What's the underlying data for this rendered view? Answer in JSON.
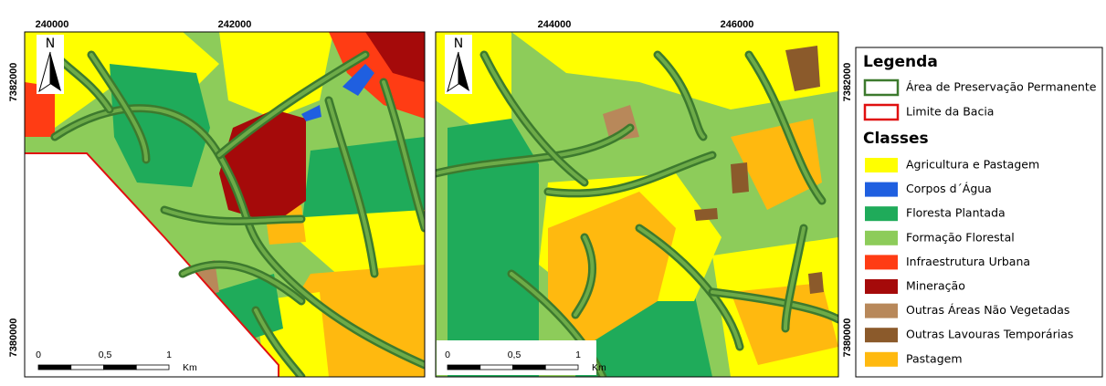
{
  "maps": [
    {
      "x_labels": [
        "240000",
        "242000"
      ],
      "y_labels": [
        "7382000",
        "7380000"
      ],
      "north": "N",
      "scale_bar": [
        "0",
        "0,5",
        "1",
        "Km"
      ]
    },
    {
      "x_labels": [
        "244000",
        "246000"
      ],
      "y_labels": [
        "7382000",
        "7380000"
      ],
      "north": "N",
      "scale_bar": [
        "0",
        "0,5",
        "1",
        "Km"
      ]
    }
  ],
  "legend": {
    "title": "Legenda",
    "boundaries": [
      {
        "label": "Área de Preservação Permanente",
        "color": "#3d7a2e"
      },
      {
        "label": "Limite da Bacia",
        "color": "#e01010"
      }
    ],
    "classes_title": "Classes",
    "classes": [
      {
        "label": "Agricultura e Pastagem",
        "color": "#ffff00"
      },
      {
        "label": "Corpos d´Água",
        "color": "#1f5fe0"
      },
      {
        "label": "Floresta Plantada",
        "color": "#1fab5a"
      },
      {
        "label": "Formação Florestal",
        "color": "#8dcc5a"
      },
      {
        "label": "Infraestrutura Urbana",
        "color": "#ff3c14"
      },
      {
        "label": "Mineração",
        "color": "#a50a0a"
      },
      {
        "label": "Outras Áreas Não Vegetadas",
        "color": "#b8885a"
      },
      {
        "label": "Outras Lavouras Temporárias",
        "color": "#8b5a2b"
      },
      {
        "label": "Pastagem",
        "color": "#ffb90f"
      }
    ]
  }
}
